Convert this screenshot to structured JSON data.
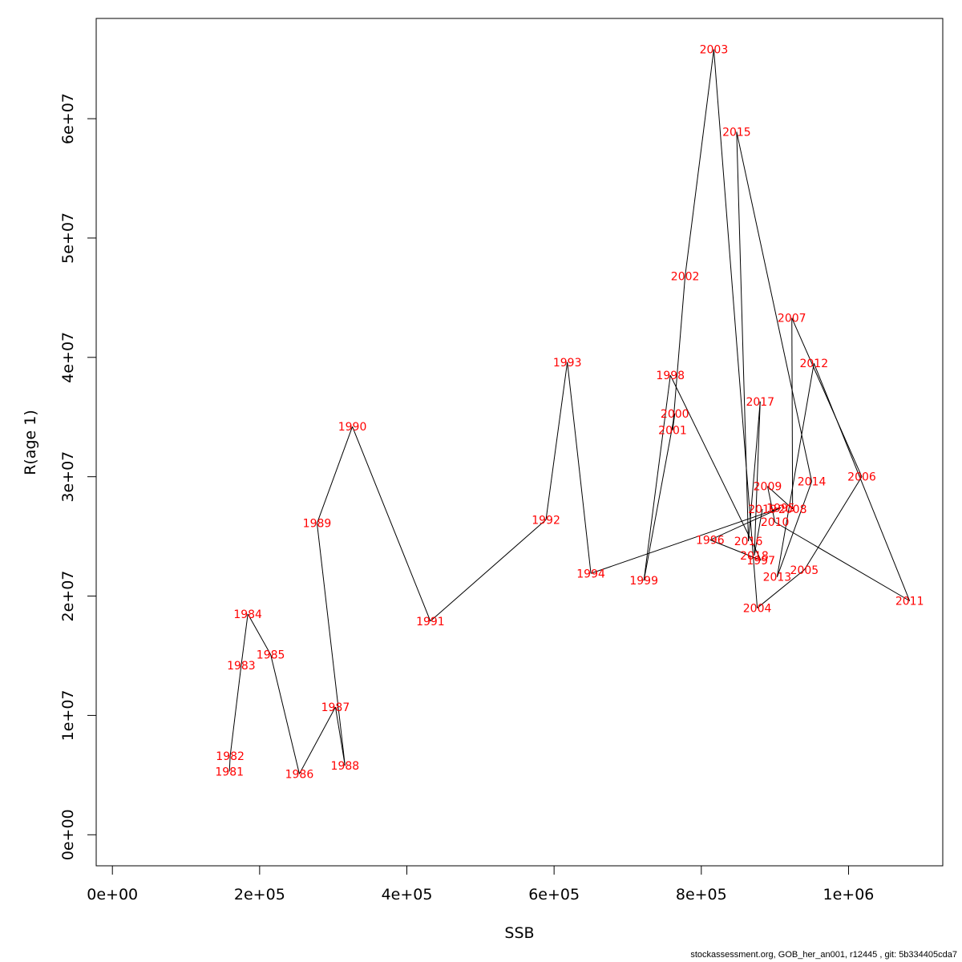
{
  "chart_data": {
    "type": "line",
    "title": "",
    "xlabel": "SSB",
    "ylabel": "R(age 1)",
    "xlim": [
      -22000,
      1128000
    ],
    "ylim": [
      -2600000,
      68400000
    ],
    "x_ticks": [
      0,
      200000,
      400000,
      600000,
      800000,
      1000000
    ],
    "x_tick_labels": [
      "0e+00",
      "2e+05",
      "4e+05",
      "6e+05",
      "8e+05",
      "1e+06"
    ],
    "y_ticks": [
      0,
      10000000,
      20000000,
      30000000,
      40000000,
      50000000,
      60000000
    ],
    "y_tick_labels": [
      "0e+00",
      "1e+07",
      "2e+07",
      "3e+07",
      "4e+07",
      "5e+07",
      "6e+07"
    ],
    "line_color": "#000000",
    "label_color": "#ff0000",
    "points": [
      {
        "year": "1981",
        "ssb": 159000,
        "rec": 5300000
      },
      {
        "year": "1982",
        "ssb": 160000,
        "rec": 6600000
      },
      {
        "year": "1983",
        "ssb": 175000,
        "rec": 14200000
      },
      {
        "year": "1984",
        "ssb": 184000,
        "rec": 18500000
      },
      {
        "year": "1985",
        "ssb": 215000,
        "rec": 15100000
      },
      {
        "year": "1986",
        "ssb": 254000,
        "rec": 5100000
      },
      {
        "year": "1987",
        "ssb": 303000,
        "rec": 10700000
      },
      {
        "year": "1988",
        "ssb": 316000,
        "rec": 5800000
      },
      {
        "year": "1989",
        "ssb": 278000,
        "rec": 26100000
      },
      {
        "year": "1990",
        "ssb": 326000,
        "rec": 34200000
      },
      {
        "year": "1991",
        "ssb": 432000,
        "rec": 17900000
      },
      {
        "year": "1992",
        "ssb": 589000,
        "rec": 26400000
      },
      {
        "year": "1993",
        "ssb": 618000,
        "rec": 39600000
      },
      {
        "year": "1994",
        "ssb": 650000,
        "rec": 21900000
      },
      {
        "year": "1995",
        "ssb": 908000,
        "rec": 27400000
      },
      {
        "year": "1996",
        "ssb": 812000,
        "rec": 24700000
      },
      {
        "year": "1997",
        "ssb": 881000,
        "rec": 23000000
      },
      {
        "year": "1998",
        "ssb": 758000,
        "rec": 38500000
      },
      {
        "year": "1999",
        "ssb": 722000,
        "rec": 21300000
      },
      {
        "year": "2000",
        "ssb": 764000,
        "rec": 35300000
      },
      {
        "year": "2001",
        "ssb": 761000,
        "rec": 33900000
      },
      {
        "year": "2002",
        "ssb": 778000,
        "rec": 46800000
      },
      {
        "year": "2003",
        "ssb": 817000,
        "rec": 65800000
      },
      {
        "year": "2004",
        "ssb": 876000,
        "rec": 19000000
      },
      {
        "year": "2005",
        "ssb": 940000,
        "rec": 22200000
      },
      {
        "year": "2006",
        "ssb": 1018000,
        "rec": 30000000
      },
      {
        "year": "2007",
        "ssb": 923000,
        "rec": 43300000
      },
      {
        "year": "2008",
        "ssb": 924000,
        "rec": 27300000
      },
      {
        "year": "2009",
        "ssb": 890000,
        "rec": 29200000
      },
      {
        "year": "2010",
        "ssb": 900000,
        "rec": 26200000
      },
      {
        "year": "2011",
        "ssb": 1083000,
        "rec": 19600000
      },
      {
        "year": "2012",
        "ssb": 953000,
        "rec": 39500000
      },
      {
        "year": "2013",
        "ssb": 903000,
        "rec": 21600000
      },
      {
        "year": "2014",
        "ssb": 950000,
        "rec": 29600000
      },
      {
        "year": "2015",
        "ssb": 848000,
        "rec": 58900000
      },
      {
        "year": "2016",
        "ssb": 864000,
        "rec": 24600000
      },
      {
        "year": "2017",
        "ssb": 880000,
        "rec": 36300000
      },
      {
        "year": "2018",
        "ssb": 872000,
        "rec": 23400000
      },
      {
        "year": "2019",
        "ssb": 883000,
        "rec": 27300000
      }
    ]
  },
  "footer_text": "stockassessment.org, GOB_her_an001, r12445 , git: 5b334405cda7"
}
